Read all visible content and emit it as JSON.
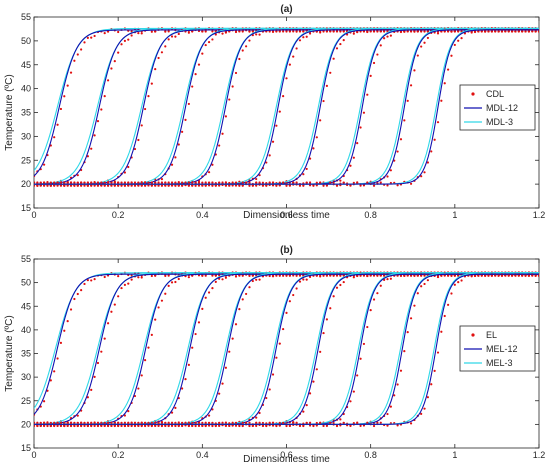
{
  "chart_data": [
    {
      "type": "line",
      "title": "(a)",
      "xlabel": "Dimensionless time",
      "ylabel": "Temperature (ºC)",
      "xlim": [
        0,
        1.2
      ],
      "ylim": [
        15,
        55
      ],
      "xticks": [
        0,
        0.2,
        0.4,
        0.6,
        0.8,
        1,
        1.2
      ],
      "xtick_labels": [
        "0",
        "0.2",
        "0.4",
        "0.6",
        "0.8",
        "1",
        "1.2"
      ],
      "yticks": [
        15,
        20,
        25,
        30,
        35,
        40,
        45,
        50,
        55
      ],
      "ytick_labels": [
        "15",
        "20",
        "25",
        "30",
        "35",
        "40",
        "45",
        "50",
        "55"
      ],
      "grid": false,
      "legend": "right",
      "t_min": 20,
      "t_max": 52.3,
      "curve_midpoints": [
        0.06,
        0.155,
        0.26,
        0.36,
        0.455,
        0.58,
        0.68,
        0.78,
        0.88,
        0.96
      ],
      "series": [
        {
          "name": "CDL",
          "style": "dots",
          "color": "#e01010"
        },
        {
          "name": "MDL-12",
          "style": "line",
          "color": "#1010b0"
        },
        {
          "name": "MDL-3",
          "style": "line",
          "color": "#30d8e8"
        }
      ]
    },
    {
      "type": "line",
      "title": "(b)",
      "xlabel": "Dimensionless time",
      "ylabel": "Temperature (ºC)",
      "xlim": [
        0,
        1.2
      ],
      "ylim": [
        15,
        55
      ],
      "xticks": [
        0,
        0.2,
        0.4,
        0.6,
        0.8,
        1,
        1.2
      ],
      "xtick_labels": [
        "0",
        "0.2",
        "0.4",
        "0.6",
        "0.8",
        "1",
        "1.2"
      ],
      "yticks": [
        15,
        20,
        25,
        30,
        35,
        40,
        45,
        50,
        55
      ],
      "ytick_labels": [
        "15",
        "20",
        "25",
        "30",
        "35",
        "40",
        "45",
        "50",
        "55"
      ],
      "grid": false,
      "legend": "right",
      "t_min": 20,
      "t_max": 51.8,
      "curve_midpoints": [
        0.055,
        0.155,
        0.265,
        0.37,
        0.46,
        0.575,
        0.675,
        0.775,
        0.875,
        0.955
      ],
      "series": [
        {
          "name": "EL",
          "style": "dots",
          "color": "#e01010"
        },
        {
          "name": "MEL-12",
          "style": "line",
          "color": "#1010b0"
        },
        {
          "name": "MEL-3",
          "style": "line",
          "color": "#30d8e8"
        }
      ]
    }
  ]
}
